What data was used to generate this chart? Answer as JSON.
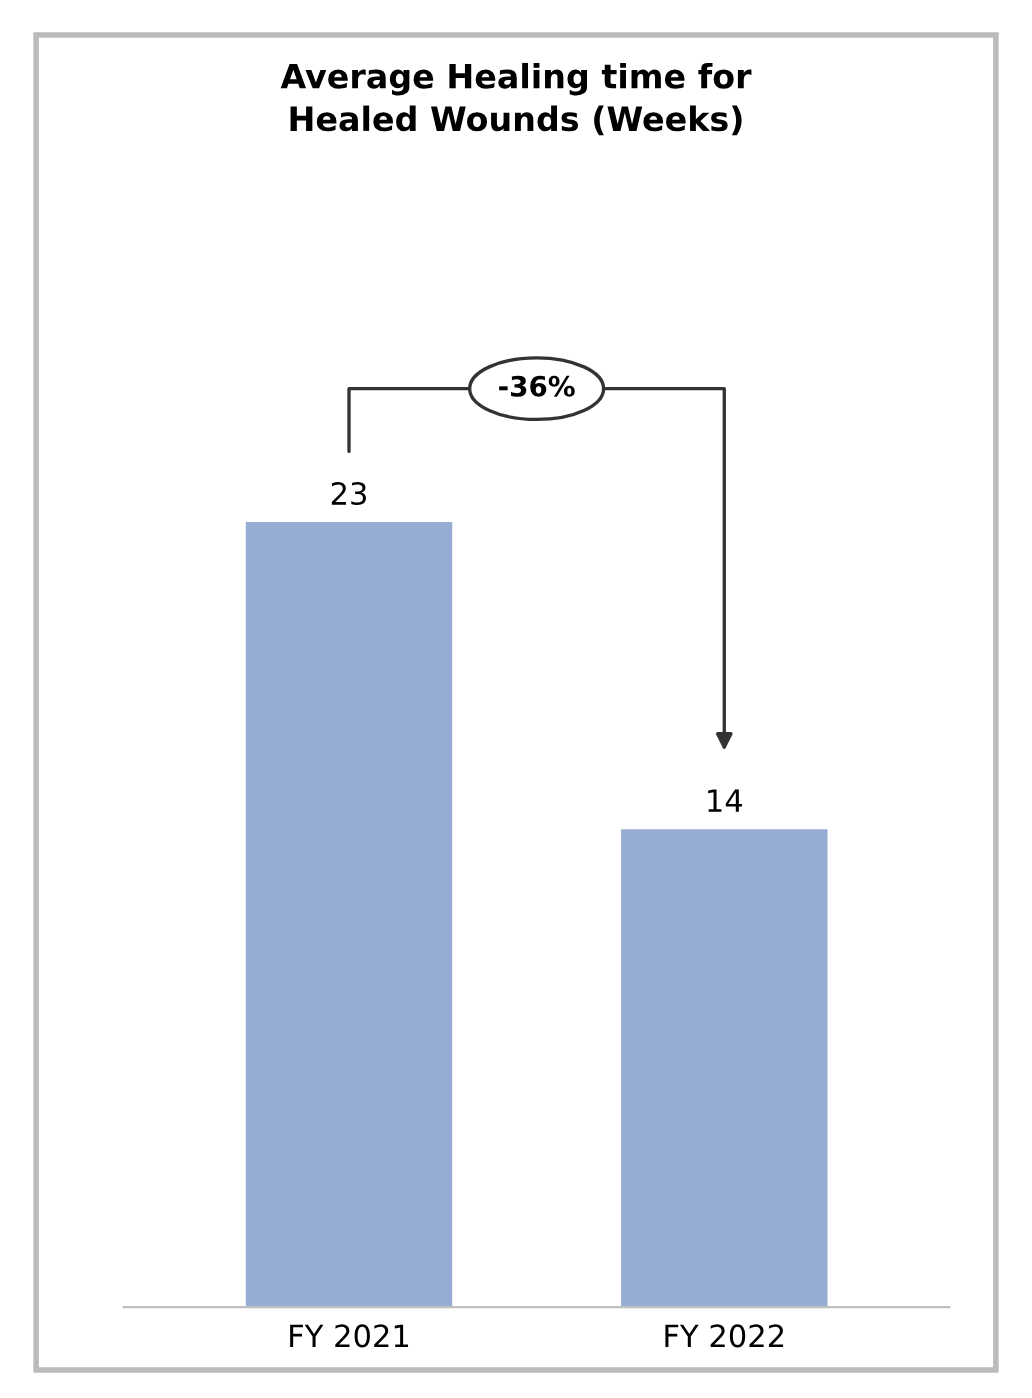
{
  "chart_data": {
    "type": "bar",
    "title": "Average Healing time for\nHealed Wounds (Weeks)",
    "categories": [
      "FY 2021",
      "FY 2022"
    ],
    "values": [
      23,
      14
    ],
    "color": "#97acd3",
    "data_labels": true,
    "annotations": [
      "-36%"
    ]
  }
}
